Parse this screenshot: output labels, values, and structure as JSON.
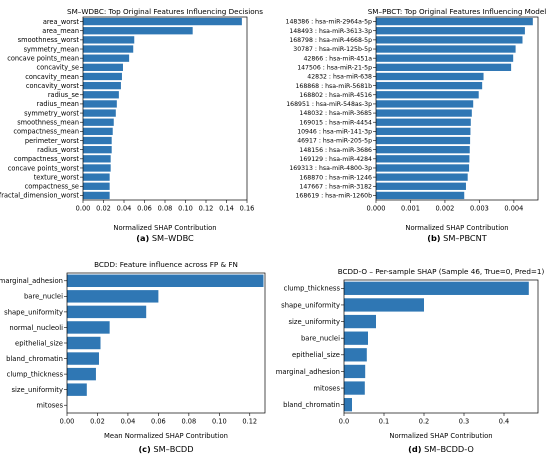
{
  "figure": {
    "bar_color": "#2f77b4"
  },
  "chart_data": [
    {
      "type": "bar",
      "orientation": "horizontal",
      "title": "SM–WDBC: Top Original Features Influencing Decisions",
      "xlabel": "Normalized SHAP Contribution",
      "ylabel": "",
      "caption_prefix": "(a)",
      "caption": "SM–WDBC",
      "xlim": [
        0,
        0.16
      ],
      "xticks": [
        "0.00",
        "0.02",
        "0.04",
        "0.06",
        "0.08",
        "0.10",
        "0.12",
        "0.14",
        "0.16"
      ],
      "categories": [
        "area_worst",
        "area_mean",
        "smoothness_worst",
        "symmetry_mean",
        "concave points_mean",
        "concavity_se",
        "concavity_mean",
        "concavity_worst",
        "radius_se",
        "radius_mean",
        "symmetry_worst",
        "smoothness_mean",
        "compactness_mean",
        "perimeter_worst",
        "radius_worst",
        "compactness_worst",
        "concave points_worst",
        "texture_worst",
        "compactness_se",
        "fractal_dimension_worst"
      ],
      "values": [
        0.155,
        0.107,
        0.05,
        0.049,
        0.045,
        0.039,
        0.038,
        0.037,
        0.035,
        0.033,
        0.032,
        0.03,
        0.029,
        0.028,
        0.028,
        0.027,
        0.027,
        0.026,
        0.026,
        0.026
      ]
    },
    {
      "type": "bar",
      "orientation": "horizontal",
      "title": "SM–PBCT: Top Original Features Influencing Model",
      "xlabel": "Normalized SHAP Contribution",
      "ylabel": "",
      "caption_prefix": "(b)",
      "caption": "SM–PBCNT",
      "xlim": [
        0,
        0.0047
      ],
      "xticks": [
        "0.000",
        "0.001",
        "0.002",
        "0.003",
        "0.004"
      ],
      "categories": [
        "148386 : hsa-miR-2964a-5p",
        "148493 : hsa-miR-3613-3p",
        "168798 : hsa-miR-4668-5p",
        "30787 : hsa-miR-125b-5p",
        "42866 : hsa-miR-451a",
        "147506 : hsa-miR-21-5p",
        "42832 : hsa-miR-638",
        "168868 : hsa-miR-5681b",
        "168802 : hsa-miR-4516",
        "168951 : hsa-miR-548as-3p",
        "148032 : hsa-miR-3685",
        "169015 : hsa-miR-4454",
        "10946 : hsa-miR-141-3p",
        "46917 : hsa-miR-205-5p",
        "148156 : hsa-miR-3686",
        "169129 : hsa-miR-4284",
        "169313 : hsa-miR-4800-3p",
        "168870 : hsa-miR-1246",
        "147667 : hsa-miR-3182",
        "168619 : hsa-miR-1260b"
      ],
      "values": [
        0.00455,
        0.00432,
        0.00425,
        0.00405,
        0.00398,
        0.00392,
        0.00312,
        0.00308,
        0.00298,
        0.00282,
        0.00278,
        0.00275,
        0.00274,
        0.00273,
        0.00272,
        0.00271,
        0.0027,
        0.00266,
        0.00261,
        0.00256
      ]
    },
    {
      "type": "bar",
      "orientation": "horizontal",
      "title": "BCDD: Feature influence across FP & FN",
      "xlabel": "Mean Normalized SHAP Contribution",
      "ylabel": "",
      "caption_prefix": "(c)",
      "caption": "SM–BCDD",
      "xlim": [
        0,
        0.13
      ],
      "xticks": [
        "0.00",
        "0.02",
        "0.04",
        "0.06",
        "0.08",
        "0.10",
        "0.12"
      ],
      "categories": [
        "marginal_adhesion",
        "bare_nuclei",
        "shape_uniformity",
        "normal_nucleoli",
        "epithelial_size",
        "bland_chromatin",
        "clump_thickness",
        "size_uniformity",
        "mitoses"
      ],
      "values": [
        0.129,
        0.06,
        0.052,
        0.028,
        0.022,
        0.021,
        0.019,
        0.013,
        0.0
      ]
    },
    {
      "type": "bar",
      "orientation": "horizontal",
      "title": "BCDD-O – Per-sample SHAP (Sample 46, True=0, Pred=1)",
      "xlabel": "Normalized SHAP Contribution",
      "ylabel": "",
      "caption_prefix": "(d)",
      "caption": "SM–BCDD-O",
      "xlim": [
        0,
        0.485
      ],
      "xticks": [
        "0.0",
        "0.1",
        "0.2",
        "0.3",
        "0.4"
      ],
      "categories": [
        "clump_thickness",
        "shape_uniformity",
        "size_uniformity",
        "bare_nuclei",
        "epithelial_size",
        "marginal_adhesion",
        "mitoses",
        "bland_chromatin"
      ],
      "values": [
        0.462,
        0.2,
        0.08,
        0.06,
        0.057,
        0.053,
        0.052,
        0.02
      ]
    }
  ]
}
